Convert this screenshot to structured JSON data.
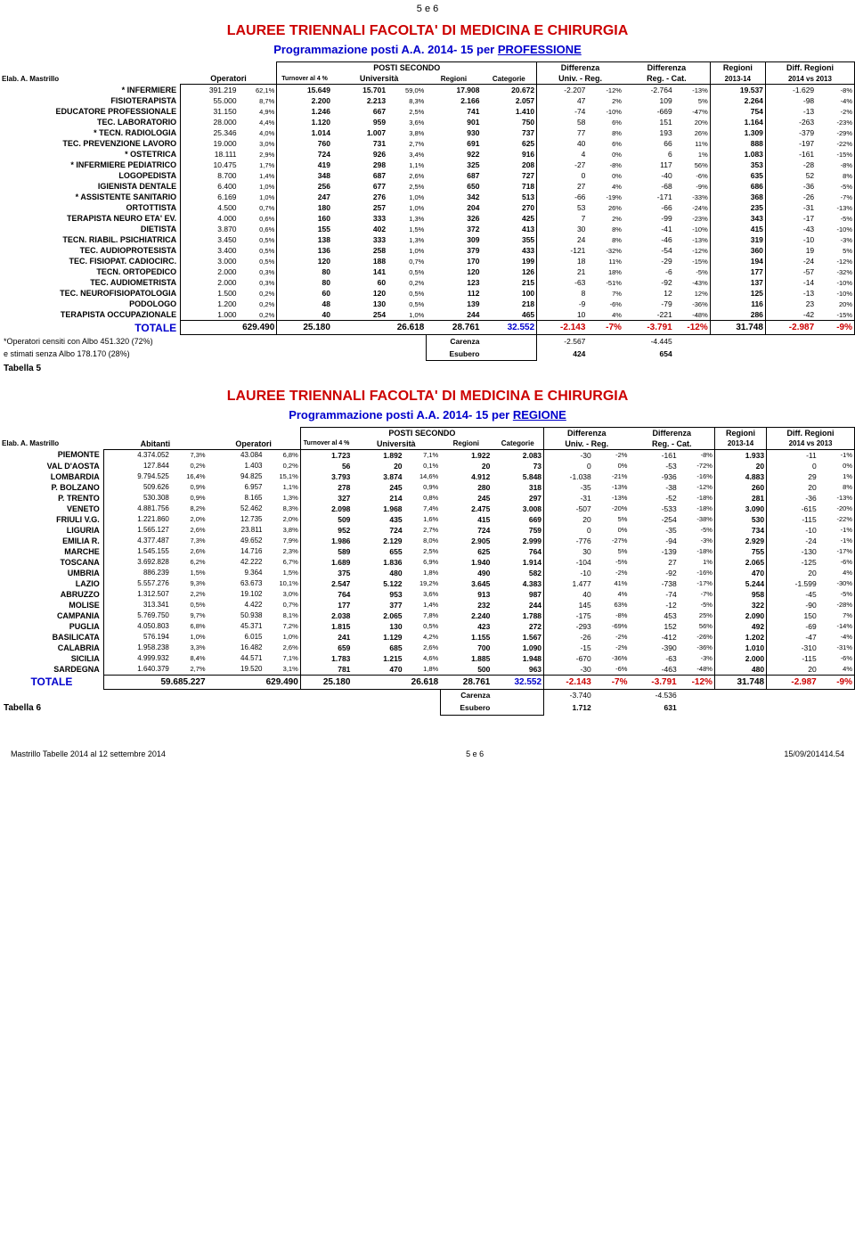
{
  "pageNum": "5 e 6",
  "footer": {
    "left": "Mastrillo Tabelle 2014 al 12 settembre 2014",
    "center": "5 e 6",
    "right": "15/09/201414.54"
  },
  "t1": {
    "title": "LAUREE TRIENNALI FACOLTA' DI MEDICINA E CHIRURGIA",
    "subtitle_a": "Programmazione posti A.A. 2014- 15 per ",
    "subtitle_b": "PROFESSIONE",
    "elab": "Elab. A. Mastrillo",
    "colgroups": {
      "posti": "POSTI SECONDO",
      "diff1": "Differenza",
      "diff2": "Differenza",
      "reg": "Regioni",
      "diffreg": "Diff. Regioni"
    },
    "cols": {
      "op": "Operatori",
      "to": "Turnover al 4 %",
      "uni": "Università",
      "regc": "Regioni",
      "cat": "Categorie",
      "ur": "Univ. - Reg.",
      "rc": "Reg. - Cat.",
      "y1": "2013-14",
      "y2": "2014 vs 2013"
    },
    "rows": [
      {
        "n": "* INFERMIERE",
        "op": "391.219",
        "opp": "62,1%",
        "to": "15.649",
        "uni": "15.701",
        "unip": "59,0%",
        "reg": "17.908",
        "cat": "20.672",
        "d1": "-2.207",
        "d1p": "-12%",
        "d2": "-2.764",
        "d2p": "-13%",
        "r": "19.537",
        "dr": "-1.629",
        "drp": "-8%"
      },
      {
        "n": "FISIOTERAPISTA",
        "op": "55.000",
        "opp": "8,7%",
        "to": "2.200",
        "uni": "2.213",
        "unip": "8,3%",
        "reg": "2.166",
        "cat": "2.057",
        "d1": "47",
        "d1p": "2%",
        "d2": "109",
        "d2p": "5%",
        "r": "2.264",
        "dr": "-98",
        "drp": "-4%"
      },
      {
        "n": "EDUCATORE PROFESSIONALE",
        "op": "31.150",
        "opp": "4,9%",
        "to": "1.246",
        "uni": "667",
        "unip": "2,5%",
        "reg": "741",
        "cat": "1.410",
        "d1": "-74",
        "d1p": "-10%",
        "d2": "-669",
        "d2p": "-47%",
        "r": "754",
        "dr": "-13",
        "drp": "-2%"
      },
      {
        "n": "TEC. LABORATORIO",
        "op": "28.000",
        "opp": "4,4%",
        "to": "1.120",
        "uni": "959",
        "unip": "3,6%",
        "reg": "901",
        "cat": "750",
        "d1": "58",
        "d1p": "6%",
        "d2": "151",
        "d2p": "20%",
        "r": "1.164",
        "dr": "-263",
        "drp": "-23%"
      },
      {
        "n": "* TECN. RADIOLOGIA",
        "op": "25.346",
        "opp": "4,0%",
        "to": "1.014",
        "uni": "1.007",
        "unip": "3,8%",
        "reg": "930",
        "cat": "737",
        "d1": "77",
        "d1p": "8%",
        "d2": "193",
        "d2p": "26%",
        "r": "1.309",
        "dr": "-379",
        "drp": "-29%"
      },
      {
        "n": "TEC. PREVENZIONE LAVORO",
        "op": "19.000",
        "opp": "3,0%",
        "to": "760",
        "uni": "731",
        "unip": "2,7%",
        "reg": "691",
        "cat": "625",
        "d1": "40",
        "d1p": "6%",
        "d2": "66",
        "d2p": "11%",
        "r": "888",
        "dr": "-197",
        "drp": "-22%"
      },
      {
        "n": "* OSTETRICA",
        "op": "18.111",
        "opp": "2,9%",
        "to": "724",
        "uni": "926",
        "unip": "3,4%",
        "reg": "922",
        "cat": "916",
        "d1": "4",
        "d1p": "0%",
        "d2": "6",
        "d2p": "1%",
        "r": "1.083",
        "dr": "-161",
        "drp": "-15%"
      },
      {
        "n": "* INFERMIERE PEDIATRICO",
        "op": "10.475",
        "opp": "1,7%",
        "to": "419",
        "uni": "298",
        "unip": "1,1%",
        "reg": "325",
        "cat": "208",
        "d1": "-27",
        "d1p": "-8%",
        "d2": "117",
        "d2p": "56%",
        "r": "353",
        "dr": "-28",
        "drp": "-8%"
      },
      {
        "n": "LOGOPEDISTA",
        "op": "8.700",
        "opp": "1,4%",
        "to": "348",
        "uni": "687",
        "unip": "2,6%",
        "reg": "687",
        "cat": "727",
        "d1": "0",
        "d1p": "0%",
        "d2": "-40",
        "d2p": "-6%",
        "r": "635",
        "dr": "52",
        "drp": "8%"
      },
      {
        "n": "IGIENISTA DENTALE",
        "op": "6.400",
        "opp": "1,0%",
        "to": "256",
        "uni": "677",
        "unip": "2,5%",
        "reg": "650",
        "cat": "718",
        "d1": "27",
        "d1p": "4%",
        "d2": "-68",
        "d2p": "-9%",
        "r": "686",
        "dr": "-36",
        "drp": "-5%"
      },
      {
        "n": "* ASSISTENTE SANITARIO",
        "op": "6.169",
        "opp": "1,0%",
        "to": "247",
        "uni": "276",
        "unip": "1,0%",
        "reg": "342",
        "cat": "513",
        "d1": "-66",
        "d1p": "-19%",
        "d2": "-171",
        "d2p": "-33%",
        "r": "368",
        "dr": "-26",
        "drp": "-7%"
      },
      {
        "n": "ORTOTTISTA",
        "op": "4.500",
        "opp": "0,7%",
        "to": "180",
        "uni": "257",
        "unip": "1,0%",
        "reg": "204",
        "cat": "270",
        "d1": "53",
        "d1p": "26%",
        "d2": "-66",
        "d2p": "-24%",
        "r": "235",
        "dr": "-31",
        "drp": "-13%"
      },
      {
        "n": "TERAPISTA NEURO ETA' EV.",
        "op": "4.000",
        "opp": "0,6%",
        "to": "160",
        "uni": "333",
        "unip": "1,3%",
        "reg": "326",
        "cat": "425",
        "d1": "7",
        "d1p": "2%",
        "d2": "-99",
        "d2p": "-23%",
        "r": "343",
        "dr": "-17",
        "drp": "-5%"
      },
      {
        "n": "DIETISTA",
        "op": "3.870",
        "opp": "0,6%",
        "to": "155",
        "uni": "402",
        "unip": "1,5%",
        "reg": "372",
        "cat": "413",
        "d1": "30",
        "d1p": "8%",
        "d2": "-41",
        "d2p": "-10%",
        "r": "415",
        "dr": "-43",
        "drp": "-10%"
      },
      {
        "n": "TECN. RIABIL. PSICHIATRICA",
        "op": "3.450",
        "opp": "0,5%",
        "to": "138",
        "uni": "333",
        "unip": "1,3%",
        "reg": "309",
        "cat": "355",
        "d1": "24",
        "d1p": "8%",
        "d2": "-46",
        "d2p": "-13%",
        "r": "319",
        "dr": "-10",
        "drp": "-3%"
      },
      {
        "n": "TEC. AUDIOPROTESISTA",
        "op": "3.400",
        "opp": "0,5%",
        "to": "136",
        "uni": "258",
        "unip": "1,0%",
        "reg": "379",
        "cat": "433",
        "d1": "-121",
        "d1p": "-32%",
        "d2": "-54",
        "d2p": "-12%",
        "r": "360",
        "dr": "19",
        "drp": "5%"
      },
      {
        "n": "TEC. FISIOPAT. CADIOCIRC.",
        "op": "3.000",
        "opp": "0,5%",
        "to": "120",
        "uni": "188",
        "unip": "0,7%",
        "reg": "170",
        "cat": "199",
        "d1": "18",
        "d1p": "11%",
        "d2": "-29",
        "d2p": "-15%",
        "r": "194",
        "dr": "-24",
        "drp": "-12%"
      },
      {
        "n": "TECN. ORTOPEDICO",
        "op": "2.000",
        "opp": "0,3%",
        "to": "80",
        "uni": "141",
        "unip": "0,5%",
        "reg": "120",
        "cat": "126",
        "d1": "21",
        "d1p": "18%",
        "d2": "-6",
        "d2p": "-5%",
        "r": "177",
        "dr": "-57",
        "drp": "-32%"
      },
      {
        "n": "TEC. AUDIOMETRISTA",
        "op": "2.000",
        "opp": "0,3%",
        "to": "80",
        "uni": "60",
        "unip": "0,2%",
        "reg": "123",
        "cat": "215",
        "d1": "-63",
        "d1p": "-51%",
        "d2": "-92",
        "d2p": "-43%",
        "r": "137",
        "dr": "-14",
        "drp": "-10%"
      },
      {
        "n": "TEC. NEUROFISIOPATOLOGIA",
        "op": "1.500",
        "opp": "0,2%",
        "to": "60",
        "uni": "120",
        "unip": "0,5%",
        "reg": "112",
        "cat": "100",
        "d1": "8",
        "d1p": "7%",
        "d2": "12",
        "d2p": "12%",
        "r": "125",
        "dr": "-13",
        "drp": "-10%"
      },
      {
        "n": "PODOLOGO",
        "op": "1.200",
        "opp": "0,2%",
        "to": "48",
        "uni": "130",
        "unip": "0,5%",
        "reg": "139",
        "cat": "218",
        "d1": "-9",
        "d1p": "-6%",
        "d2": "-79",
        "d2p": "-36%",
        "r": "116",
        "dr": "23",
        "drp": "20%"
      },
      {
        "n": "TERAPISTA OCCUPAZIONALE",
        "op": "1.000",
        "opp": "0,2%",
        "to": "40",
        "uni": "254",
        "unip": "1,0%",
        "reg": "244",
        "cat": "465",
        "d1": "10",
        "d1p": "4%",
        "d2": "-221",
        "d2p": "-48%",
        "r": "286",
        "dr": "-42",
        "drp": "-15%"
      }
    ],
    "total": {
      "n": "TOTALE",
      "op": "629.490",
      "to": "25.180",
      "uni": "26.618",
      "reg": "28.761",
      "cat": "32.552",
      "d1": "-2.143",
      "d1p": "-7%",
      "d2": "-3.791",
      "d2p": "-12%",
      "r": "31.748",
      "dr": "-2.987",
      "drp": "-9%"
    },
    "notes": {
      "a": "*Operatori censiti con Albo 451.320 (72%)",
      "b": "e  stimati  senza  Albo 178.170 (28%)",
      "car": "Carenza",
      "carv1": "-2.567",
      "carv2": "-4.445",
      "esu": "Esubero",
      "esuv1": "424",
      "esuv2": "654"
    },
    "tablbl": "Tabella 5"
  },
  "t2": {
    "title": "LAUREE TRIENNALI FACOLTA' DI MEDICINA E CHIRURGIA",
    "subtitle_a": "Programmazione posti A.A. 2014- 15 per ",
    "subtitle_b": "REGIONE",
    "elab": "Elab. A. Mastrillo",
    "colgroups": {
      "posti": "POSTI SECONDO",
      "diff1": "Differenza",
      "diff2": "Differenza",
      "reg": "Regioni",
      "diffreg": "Diff. Regioni"
    },
    "cols": {
      "ab": "Abitanti",
      "op": "Operatori",
      "to": "Turnover al 4 %",
      "uni": "Università",
      "regc": "Regioni",
      "cat": "Categorie",
      "ur": "Univ. - Reg.",
      "rc": "Reg. - Cat.",
      "y1": "2013-14",
      "y2": "2014 vs 2013"
    },
    "rows": [
      {
        "n": "PIEMONTE",
        "ab": "4.374.052",
        "abp": "7,3%",
        "op": "43.084",
        "opp": "6,8%",
        "to": "1.723",
        "uni": "1.892",
        "unip": "7,1%",
        "reg": "1.922",
        "cat": "2.083",
        "d1": "-30",
        "d1p": "-2%",
        "d2": "-161",
        "d2p": "-8%",
        "r": "1.933",
        "dr": "-11",
        "drp": "-1%"
      },
      {
        "n": "VAL D'AOSTA",
        "ab": "127.844",
        "abp": "0,2%",
        "op": "1.403",
        "opp": "0,2%",
        "to": "56",
        "uni": "20",
        "unip": "0,1%",
        "reg": "20",
        "cat": "73",
        "d1": "0",
        "d1p": "0%",
        "d2": "-53",
        "d2p": "-72%",
        "r": "20",
        "dr": "0",
        "drp": "0%"
      },
      {
        "n": "LOMBARDIA",
        "ab": "9.794.525",
        "abp": "16,4%",
        "op": "94.825",
        "opp": "15,1%",
        "to": "3.793",
        "uni": "3.874",
        "unip": "14,6%",
        "reg": "4.912",
        "cat": "5.848",
        "d1": "-1.038",
        "d1p": "-21%",
        "d2": "-936",
        "d2p": "-16%",
        "r": "4.883",
        "dr": "29",
        "drp": "1%"
      },
      {
        "n": "P. BOLZANO",
        "ab": "509.626",
        "abp": "0,9%",
        "op": "6.957",
        "opp": "1,1%",
        "to": "278",
        "uni": "245",
        "unip": "0,9%",
        "reg": "280",
        "cat": "318",
        "d1": "-35",
        "d1p": "-13%",
        "d2": "-38",
        "d2p": "-12%",
        "r": "260",
        "dr": "20",
        "drp": "8%"
      },
      {
        "n": "P. TRENTO",
        "ab": "530.308",
        "abp": "0,9%",
        "op": "8.165",
        "opp": "1,3%",
        "to": "327",
        "uni": "214",
        "unip": "0,8%",
        "reg": "245",
        "cat": "297",
        "d1": "-31",
        "d1p": "-13%",
        "d2": "-52",
        "d2p": "-18%",
        "r": "281",
        "dr": "-36",
        "drp": "-13%"
      },
      {
        "n": "VENETO",
        "ab": "4.881.756",
        "abp": "8,2%",
        "op": "52.462",
        "opp": "8,3%",
        "to": "2.098",
        "uni": "1.968",
        "unip": "7,4%",
        "reg": "2.475",
        "cat": "3.008",
        "d1": "-507",
        "d1p": "-20%",
        "d2": "-533",
        "d2p": "-18%",
        "r": "3.090",
        "dr": "-615",
        "drp": "-20%"
      },
      {
        "n": "FRIULI V.G.",
        "ab": "1.221.860",
        "abp": "2,0%",
        "op": "12.735",
        "opp": "2,0%",
        "to": "509",
        "uni": "435",
        "unip": "1,6%",
        "reg": "415",
        "cat": "669",
        "d1": "20",
        "d1p": "5%",
        "d2": "-254",
        "d2p": "-38%",
        "r": "530",
        "dr": "-115",
        "drp": "-22%"
      },
      {
        "n": "LIGURIA",
        "ab": "1.565.127",
        "abp": "2,6%",
        "op": "23.811",
        "opp": "3,8%",
        "to": "952",
        "uni": "724",
        "unip": "2,7%",
        "reg": "724",
        "cat": "759",
        "d1": "0",
        "d1p": "0%",
        "d2": "-35",
        "d2p": "-5%",
        "r": "734",
        "dr": "-10",
        "drp": "-1%"
      },
      {
        "n": "EMILIA R.",
        "ab": "4.377.487",
        "abp": "7,3%",
        "op": "49.652",
        "opp": "7,9%",
        "to": "1.986",
        "uni": "2.129",
        "unip": "8,0%",
        "reg": "2.905",
        "cat": "2.999",
        "d1": "-776",
        "d1p": "-27%",
        "d2": "-94",
        "d2p": "-3%",
        "r": "2.929",
        "dr": "-24",
        "drp": "-1%"
      },
      {
        "n": "MARCHE",
        "ab": "1.545.155",
        "abp": "2,6%",
        "op": "14.716",
        "opp": "2,3%",
        "to": "589",
        "uni": "655",
        "unip": "2,5%",
        "reg": "625",
        "cat": "764",
        "d1": "30",
        "d1p": "5%",
        "d2": "-139",
        "d2p": "-18%",
        "r": "755",
        "dr": "-130",
        "drp": "-17%"
      },
      {
        "n": "TOSCANA",
        "ab": "3.692.828",
        "abp": "6,2%",
        "op": "42.222",
        "opp": "6,7%",
        "to": "1.689",
        "uni": "1.836",
        "unip": "6,9%",
        "reg": "1.940",
        "cat": "1.914",
        "d1": "-104",
        "d1p": "-5%",
        "d2": "27",
        "d2p": "1%",
        "r": "2.065",
        "dr": "-125",
        "drp": "-6%"
      },
      {
        "n": "UMBRIA",
        "ab": "886.239",
        "abp": "1,5%",
        "op": "9.364",
        "opp": "1,5%",
        "to": "375",
        "uni": "480",
        "unip": "1,8%",
        "reg": "490",
        "cat": "582",
        "d1": "-10",
        "d1p": "-2%",
        "d2": "-92",
        "d2p": "-16%",
        "r": "470",
        "dr": "20",
        "drp": "4%"
      },
      {
        "n": "LAZIO",
        "ab": "5.557.276",
        "abp": "9,3%",
        "op": "63.673",
        "opp": "10,1%",
        "to": "2.547",
        "uni": "5.122",
        "unip": "19,2%",
        "reg": "3.645",
        "cat": "4.383",
        "d1": "1.477",
        "d1p": "41%",
        "d2": "-738",
        "d2p": "-17%",
        "r": "5.244",
        "dr": "-1.599",
        "drp": "-30%"
      },
      {
        "n": "ABRUZZO",
        "ab": "1.312.507",
        "abp": "2,2%",
        "op": "19.102",
        "opp": "3,0%",
        "to": "764",
        "uni": "953",
        "unip": "3,6%",
        "reg": "913",
        "cat": "987",
        "d1": "40",
        "d1p": "4%",
        "d2": "-74",
        "d2p": "-7%",
        "r": "958",
        "dr": "-45",
        "drp": "-5%"
      },
      {
        "n": "MOLISE",
        "ab": "313.341",
        "abp": "0,5%",
        "op": "4.422",
        "opp": "0,7%",
        "to": "177",
        "uni": "377",
        "unip": "1,4%",
        "reg": "232",
        "cat": "244",
        "d1": "145",
        "d1p": "63%",
        "d2": "-12",
        "d2p": "-5%",
        "r": "322",
        "dr": "-90",
        "drp": "-28%"
      },
      {
        "n": "CAMPANIA",
        "ab": "5.769.750",
        "abp": "9,7%",
        "op": "50.938",
        "opp": "8,1%",
        "to": "2.038",
        "uni": "2.065",
        "unip": "7,8%",
        "reg": "2.240",
        "cat": "1.788",
        "d1": "-175",
        "d1p": "-8%",
        "d2": "453",
        "d2p": "25%",
        "r": "2.090",
        "dr": "150",
        "drp": "7%"
      },
      {
        "n": "PUGLIA",
        "ab": "4.050.803",
        "abp": "6,8%",
        "op": "45.371",
        "opp": "7,2%",
        "to": "1.815",
        "uni": "130",
        "unip": "0,5%",
        "reg": "423",
        "cat": "272",
        "d1": "-293",
        "d1p": "-69%",
        "d2": "152",
        "d2p": "56%",
        "r": "492",
        "dr": "-69",
        "drp": "-14%"
      },
      {
        "n": "BASILICATA",
        "ab": "576.194",
        "abp": "1,0%",
        "op": "6.015",
        "opp": "1,0%",
        "to": "241",
        "uni": "1.129",
        "unip": "4,2%",
        "reg": "1.155",
        "cat": "1.567",
        "d1": "-26",
        "d1p": "-2%",
        "d2": "-412",
        "d2p": "-26%",
        "r": "1.202",
        "dr": "-47",
        "drp": "-4%"
      },
      {
        "n": "CALABRIA",
        "ab": "1.958.238",
        "abp": "3,3%",
        "op": "16.482",
        "opp": "2,6%",
        "to": "659",
        "uni": "685",
        "unip": "2,6%",
        "reg": "700",
        "cat": "1.090",
        "d1": "-15",
        "d1p": "-2%",
        "d2": "-390",
        "d2p": "-36%",
        "r": "1.010",
        "dr": "-310",
        "drp": "-31%"
      },
      {
        "n": "SICILIA",
        "ab": "4.999.932",
        "abp": "8,4%",
        "op": "44.571",
        "opp": "7,1%",
        "to": "1.783",
        "uni": "1.215",
        "unip": "4,6%",
        "reg": "1.885",
        "cat": "1.948",
        "d1": "-670",
        "d1p": "-36%",
        "d2": "-63",
        "d2p": "-3%",
        "r": "2.000",
        "dr": "-115",
        "drp": "-6%"
      },
      {
        "n": "SARDEGNA",
        "ab": "1.640.379",
        "abp": "2,7%",
        "op": "19.520",
        "opp": "3,1%",
        "to": "781",
        "uni": "470",
        "unip": "1,8%",
        "reg": "500",
        "cat": "963",
        "d1": "-30",
        "d1p": "-6%",
        "d2": "-463",
        "d2p": "-48%",
        "r": "480",
        "dr": "20",
        "drp": "4%"
      }
    ],
    "total": {
      "n": "TOTALE",
      "ab": "59.685.227",
      "op": "629.490",
      "to": "25.180",
      "uni": "26.618",
      "reg": "28.761",
      "cat": "32.552",
      "d1": "-2.143",
      "d1p": "-7%",
      "d2": "-3.791",
      "d2p": "-12%",
      "r": "31.748",
      "dr": "-2.987",
      "drp": "-9%"
    },
    "notes": {
      "car": "Carenza",
      "carv1": "-3.740",
      "carv2": "-4.536",
      "esu": "Esubero",
      "esuv1": "1.712",
      "esuv2": "631"
    },
    "tablbl": "Tabella 6"
  }
}
